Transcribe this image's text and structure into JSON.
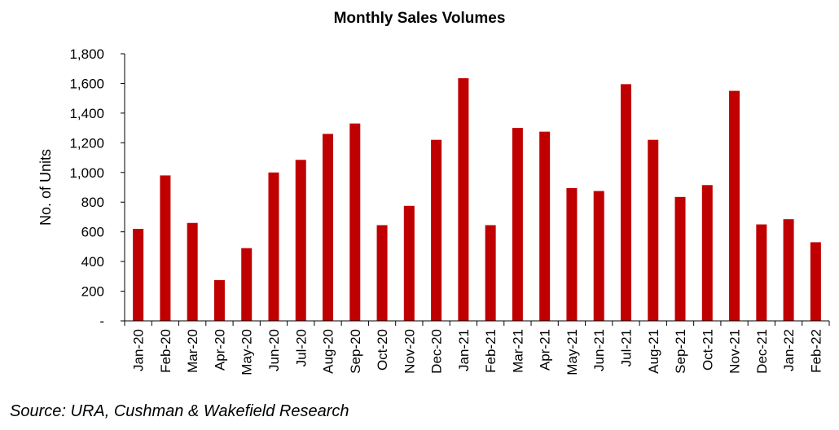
{
  "chart_data": {
    "type": "bar",
    "title": "Monthly Sales Volumes",
    "xlabel": "",
    "ylabel": "No. of Units",
    "ylim": [
      0,
      1800
    ],
    "yticks": [
      0,
      200,
      400,
      600,
      800,
      1000,
      1200,
      1400,
      1600,
      1800
    ],
    "ytick_labels": [
      "-",
      "200",
      "400",
      "600",
      "800",
      "1,000",
      "1,200",
      "1,400",
      "1,600",
      "1,800"
    ],
    "categories": [
      "Jan-20",
      "Feb-20",
      "Mar-20",
      "Apr-20",
      "May-20",
      "Jun-20",
      "Jul-20",
      "Aug-20",
      "Sep-20",
      "Oct-20",
      "Nov-20",
      "Dec-20",
      "Jan-21",
      "Feb-21",
      "Mar-21",
      "Apr-21",
      "May-21",
      "Jun-21",
      "Jul-21",
      "Aug-21",
      "Sep-21",
      "Oct-21",
      "Nov-21",
      "Dec-21",
      "Jan-22",
      "Feb-22"
    ],
    "values": [
      620,
      980,
      660,
      275,
      490,
      1000,
      1085,
      1260,
      1330,
      645,
      775,
      1220,
      1635,
      645,
      1300,
      1275,
      895,
      875,
      1595,
      1220,
      835,
      915,
      1550,
      650,
      685,
      530
    ],
    "grid": false,
    "legend": "none",
    "bar_color": "#c00000"
  },
  "source": "Source: URA, Cushman & Wakefield Research"
}
